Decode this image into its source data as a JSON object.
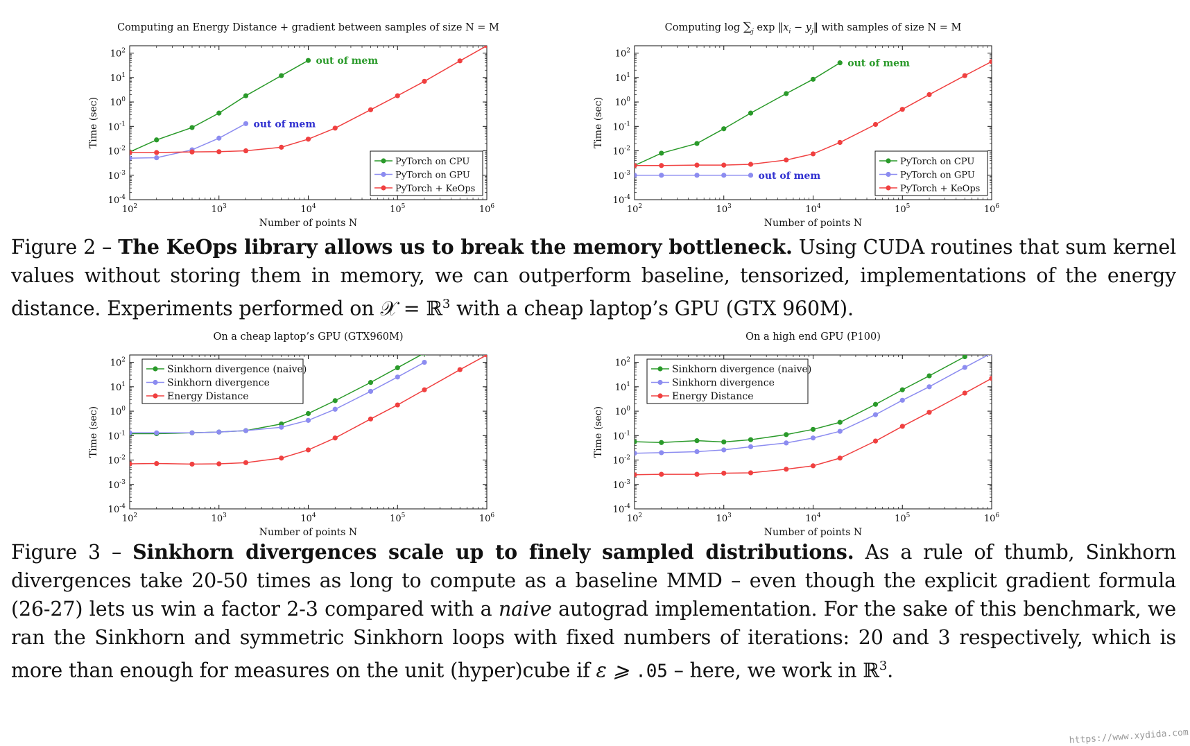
{
  "figure2": {
    "label": "Figure 2 –",
    "bold": "The KeOps library allows us to break the memory bottleneck.",
    "text_a": " Using CUDA routines that sum kernel values without storing them in memory, we can outperform baseline, tensorized, implementations of the energy distance. Experiments performed on ",
    "math_x": "𝒳 = ℝ",
    "math_sup": "3",
    "text_b": " with a cheap laptop’s GPU (GTX 960M)."
  },
  "figure3": {
    "label": "Figure 3 –",
    "bold": "Sinkhorn divergences scale up to finely sampled distributions.",
    "text_a": " As a rule of thumb, Sinkhorn divergences take 20-50 times as long to compute as a baseline MMD – even though the explicit gradient formula (26-27) lets us win a factor 2-3 compared with a ",
    "italic": "naive",
    "text_b": " autograd implementation. For the sake of this benchmark, we ran the Sinkhorn and symmetric Sinkhorn loops with fixed numbers of iterations: 20 and 3 respectively, which is more than enough for measures on the unit (hyper)cube if ",
    "eps": "ε ⩾ ",
    "eps_val": ".05",
    "text_c": " – here, we work in ℝ",
    "sup": "3",
    "text_d": "."
  },
  "watermark": "https://www.xydida.com",
  "chart_data": [
    {
      "type": "line",
      "title": "Computing an Energy Distance + gradient between samples of size N = M",
      "xlabel": "Number of points N",
      "ylabel": "Time (sec)",
      "xscale": "log",
      "yscale": "log",
      "xlim": [
        100,
        1000000
      ],
      "ylim": [
        0.0001,
        200
      ],
      "legend_position": "bottom-right",
      "series": [
        {
          "name": "PyTorch on CPU",
          "color": "#2a9a2a",
          "x": [
            100,
            200,
            500,
            1000,
            2000,
            5000,
            10000
          ],
          "y": [
            0.009,
            0.028,
            0.09,
            0.35,
            1.8,
            12,
            50
          ]
        },
        {
          "name": "PyTorch on GPU",
          "color": "#8c8cf0",
          "x": [
            100,
            200,
            500,
            1000,
            2000
          ],
          "y": [
            0.005,
            0.0052,
            0.011,
            0.033,
            0.13
          ]
        },
        {
          "name": "PyTorch + KeOps",
          "color": "#f04040",
          "x": [
            100,
            200,
            500,
            1000,
            2000,
            5000,
            10000,
            20000,
            50000,
            100000,
            200000,
            500000,
            1000000
          ],
          "y": [
            0.0085,
            0.0085,
            0.009,
            0.0092,
            0.01,
            0.014,
            0.03,
            0.085,
            0.48,
            1.8,
            7,
            48,
            200
          ]
        }
      ],
      "annotations": [
        {
          "text": "out of mem",
          "series": "PyTorch on CPU",
          "color": "#2a9a2a"
        },
        {
          "text": "out of mem",
          "series": "PyTorch on GPU",
          "color": "#3030d0"
        }
      ]
    },
    {
      "type": "line",
      "title_prefix": "Computing log",
      "title_math": "∑",
      "title_sub": "j",
      "title_mid": " exp ‖",
      "title_xi": "x",
      "title_i": "i",
      "title_minus": " − ",
      "title_yj": "y",
      "title_j": "j",
      "title_suffix": "‖ with samples of size N = M",
      "xlabel": "Number of points N",
      "ylabel": "Time (sec)",
      "xscale": "log",
      "yscale": "log",
      "xlim": [
        100,
        1000000
      ],
      "ylim": [
        0.0001,
        200
      ],
      "legend_position": "bottom-right",
      "series": [
        {
          "name": "PyTorch on CPU",
          "color": "#2a9a2a",
          "x": [
            100,
            200,
            500,
            1000,
            2000,
            5000,
            10000,
            20000
          ],
          "y": [
            0.0025,
            0.008,
            0.02,
            0.08,
            0.35,
            2.2,
            8.5,
            40
          ]
        },
        {
          "name": "PyTorch on GPU",
          "color": "#8c8cf0",
          "x": [
            100,
            200,
            500,
            1000,
            2000
          ],
          "y": [
            0.001,
            0.001,
            0.001,
            0.001,
            0.001
          ]
        },
        {
          "name": "PyTorch + KeOps",
          "color": "#f04040",
          "x": [
            100,
            200,
            500,
            1000,
            2000,
            5000,
            10000,
            20000,
            50000,
            100000,
            200000,
            500000,
            1000000
          ],
          "y": [
            0.0025,
            0.0025,
            0.0026,
            0.0026,
            0.0028,
            0.0042,
            0.0075,
            0.022,
            0.12,
            0.5,
            2,
            12,
            45
          ]
        }
      ],
      "annotations": [
        {
          "text": "out of mem",
          "series": "PyTorch on CPU",
          "color": "#2a9a2a"
        },
        {
          "text": "out of mem",
          "series": "PyTorch on GPU",
          "color": "#3030d0"
        }
      ]
    },
    {
      "type": "line",
      "title": "On a cheap laptop’s GPU (GTX960M)",
      "xlabel": "Number of points N",
      "ylabel": "Time (sec)",
      "xscale": "log",
      "yscale": "log",
      "xlim": [
        100,
        1000000
      ],
      "ylim": [
        0.0001,
        200
      ],
      "legend_position": "top-left",
      "series": [
        {
          "name": "Sinkhorn divergence (naive)",
          "color": "#2a9a2a",
          "x": [
            100,
            200,
            500,
            1000,
            2000,
            5000,
            10000,
            20000,
            50000,
            100000,
            200000
          ],
          "y": [
            0.12,
            0.12,
            0.13,
            0.14,
            0.16,
            0.3,
            0.8,
            2.7,
            15,
            60,
            240
          ]
        },
        {
          "name": "Sinkhorn divergence",
          "color": "#8c8cf0",
          "x": [
            100,
            200,
            500,
            1000,
            2000,
            5000,
            10000,
            20000,
            50000,
            100000,
            200000
          ],
          "y": [
            0.13,
            0.13,
            0.13,
            0.14,
            0.16,
            0.22,
            0.42,
            1.2,
            6.5,
            25,
            100
          ]
        },
        {
          "name": "Energy Distance",
          "color": "#f04040",
          "x": [
            100,
            200,
            500,
            1000,
            2000,
            5000,
            10000,
            20000,
            50000,
            100000,
            200000,
            500000,
            1000000
          ],
          "y": [
            0.007,
            0.0072,
            0.0068,
            0.007,
            0.0078,
            0.012,
            0.026,
            0.08,
            0.48,
            1.8,
            7.5,
            50,
            200
          ]
        }
      ]
    },
    {
      "type": "line",
      "title": "On a high end GPU (P100)",
      "xlabel": "Number of points N",
      "ylabel": "Time (sec)",
      "xscale": "log",
      "yscale": "log",
      "xlim": [
        100,
        1000000
      ],
      "ylim": [
        0.0001,
        200
      ],
      "legend_position": "top-left",
      "series": [
        {
          "name": "Sinkhorn divergence (naive)",
          "color": "#2a9a2a",
          "x": [
            100,
            200,
            500,
            1000,
            2000,
            5000,
            10000,
            20000,
            50000,
            100000,
            200000,
            500000
          ],
          "y": [
            0.056,
            0.052,
            0.062,
            0.055,
            0.068,
            0.11,
            0.18,
            0.35,
            1.9,
            7.5,
            28,
            170
          ]
        },
        {
          "name": "Sinkhorn divergence",
          "color": "#8c8cf0",
          "x": [
            100,
            200,
            500,
            1000,
            2000,
            5000,
            10000,
            20000,
            50000,
            100000,
            200000,
            500000,
            1000000
          ],
          "y": [
            0.019,
            0.02,
            0.022,
            0.026,
            0.035,
            0.05,
            0.08,
            0.15,
            0.72,
            2.8,
            10,
            62,
            240
          ]
        },
        {
          "name": "Energy Distance",
          "color": "#f04040",
          "x": [
            100,
            200,
            500,
            1000,
            2000,
            5000,
            10000,
            20000,
            50000,
            100000,
            200000,
            500000,
            1000000
          ],
          "y": [
            0.0025,
            0.0026,
            0.0026,
            0.0029,
            0.003,
            0.0042,
            0.0058,
            0.012,
            0.06,
            0.24,
            0.9,
            5.5,
            22
          ]
        }
      ]
    }
  ]
}
